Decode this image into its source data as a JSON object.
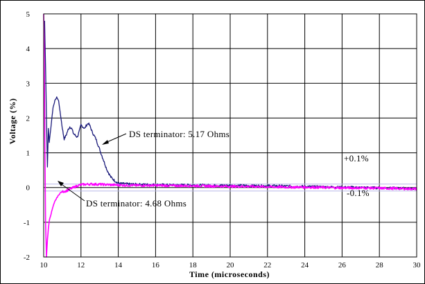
{
  "chart_data": {
    "type": "line",
    "xlabel": "Time (microseconds)",
    "ylabel": "Voltage (%)",
    "xlim": [
      10,
      30
    ],
    "ylim": [
      -2,
      5
    ],
    "x_ticks": [
      "10",
      "12",
      "14",
      "16",
      "18",
      "20",
      "22",
      "24",
      "26",
      "28",
      "30"
    ],
    "y_ticks": [
      "-2",
      "-1",
      "0",
      "1",
      "2",
      "3",
      "4",
      "5"
    ],
    "grid": true,
    "series": [
      {
        "name": "DS terminator: 5.17 Ohms",
        "color": "#1a1a7a",
        "x": [
          10.05,
          10.1,
          10.15,
          10.2,
          10.25,
          10.3,
          10.4,
          10.5,
          10.6,
          10.7,
          10.8,
          10.9,
          11.0,
          11.1,
          11.2,
          11.3,
          11.4,
          11.5,
          11.6,
          11.7,
          11.8,
          11.9,
          12.0,
          12.1,
          12.2,
          12.3,
          12.4,
          12.5,
          12.6,
          12.7,
          12.8,
          12.9,
          13.0,
          13.2,
          13.4,
          13.6,
          13.8,
          14.0,
          14.5,
          15,
          16,
          17,
          18,
          19,
          20,
          21,
          22,
          23,
          24,
          25,
          26,
          27,
          28,
          29,
          30
        ],
        "y": [
          4.8,
          3.5,
          2.0,
          0.6,
          1.7,
          1.3,
          1.8,
          2.3,
          2.5,
          2.6,
          2.5,
          2.1,
          1.7,
          1.4,
          1.5,
          1.65,
          1.75,
          1.7,
          1.55,
          1.5,
          1.45,
          1.6,
          1.8,
          1.75,
          1.7,
          1.8,
          1.85,
          1.75,
          1.6,
          1.5,
          1.4,
          1.25,
          1.1,
          0.8,
          0.5,
          0.3,
          0.2,
          0.12,
          0.1,
          0.09,
          0.08,
          0.07,
          0.07,
          0.06,
          0.06,
          0.05,
          0.05,
          0.04,
          0.03,
          0.02,
          0.01,
          0.0,
          -0.01,
          -0.02,
          -0.03
        ]
      },
      {
        "name": "DS terminator: 4.68 Ohms",
        "color": "#ff00ff",
        "x": [
          10.0,
          10.03,
          10.06,
          10.1,
          10.15,
          10.2,
          10.25,
          10.3,
          10.4,
          10.5,
          10.6,
          10.7,
          10.8,
          10.9,
          11.0,
          11.2,
          11.4,
          11.6,
          11.8,
          12.0,
          12.5,
          13,
          14,
          15,
          16,
          17,
          18,
          19,
          20,
          21,
          22,
          23,
          24,
          25,
          26,
          27,
          28,
          29,
          30
        ],
        "y": [
          5.0,
          4.0,
          1.5,
          -1.0,
          -2.0,
          -1.5,
          -1.2,
          -0.95,
          -0.75,
          -0.55,
          -0.4,
          -0.3,
          -0.22,
          -0.15,
          -0.12,
          -0.1,
          -0.05,
          0.0,
          0.05,
          0.08,
          0.1,
          0.09,
          0.07,
          0.06,
          0.06,
          0.05,
          0.05,
          0.04,
          0.03,
          0.03,
          0.02,
          0.01,
          0.01,
          0.0,
          -0.01,
          -0.01,
          -0.02,
          -0.03,
          -0.04
        ]
      }
    ],
    "reference_lines": [
      {
        "label": "+0.1%",
        "y": 0.1,
        "color": "#b8b8e8"
      },
      {
        "label": "-0.1%",
        "y": -0.1,
        "color": "#b8b8e8"
      }
    ],
    "annotations": [
      {
        "text": "DS terminator: 5.17 Ohms"
      },
      {
        "text": "DS terminator: 4.68 Ohms"
      }
    ]
  }
}
